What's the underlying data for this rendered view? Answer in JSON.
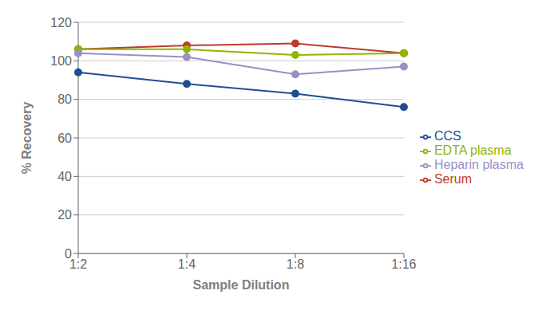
{
  "chart_data": {
    "type": "line",
    "categories": [
      "1:2",
      "1:4",
      "1:8",
      "1:16"
    ],
    "series": [
      {
        "name": "CCS",
        "color": "#1F4E92",
        "marker": "circle",
        "values": [
          94,
          88,
          83,
          76
        ]
      },
      {
        "name": "Serum",
        "color": "#C0392B",
        "marker": "circle",
        "values": [
          106,
          108,
          109,
          104
        ]
      },
      {
        "name": "EDTA plasma",
        "color": "#8DB600",
        "marker": "circle",
        "values": [
          106,
          106,
          103,
          104
        ]
      },
      {
        "name": "Heparin plasma",
        "color": "#9B8EC4",
        "marker": "circle",
        "values": [
          104,
          102,
          93,
          97
        ]
      }
    ],
    "xlabel": "Sample Dilution",
    "ylabel": "% Recovery",
    "ylim": [
      0,
      120
    ],
    "yticks": [
      0,
      20,
      40,
      60,
      80,
      100,
      120
    ],
    "grid": true,
    "legend": "right"
  }
}
